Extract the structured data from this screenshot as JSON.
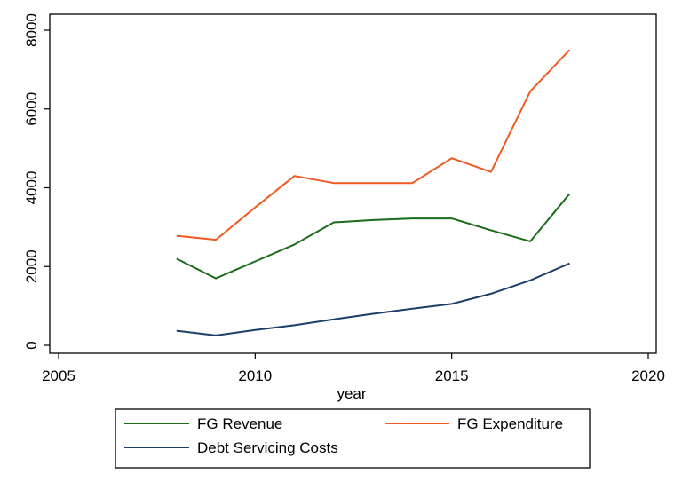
{
  "chart_data": {
    "type": "line",
    "xlabel": "year",
    "ylabel": "",
    "xlim": [
      2005,
      2020
    ],
    "ylim": [
      0,
      8000
    ],
    "x_ticks": [
      2005,
      2010,
      2015,
      2020
    ],
    "y_ticks": [
      0,
      2000,
      4000,
      6000,
      8000
    ],
    "grid": false,
    "legend_position": "bottom",
    "x": [
      2008,
      2009,
      2010,
      2011,
      2012,
      2013,
      2014,
      2015,
      2016,
      2017,
      2018
    ],
    "series": [
      {
        "name": "FG Revenue",
        "color": "#1a6b1a",
        "values": [
          2200,
          1700,
          2130,
          2560,
          3120,
          3180,
          3220,
          3220,
          2920,
          2640,
          3850
        ]
      },
      {
        "name": "FG Expenditure",
        "color": "#f05a22",
        "values": [
          2780,
          2680,
          3500,
          4300,
          4120,
          4120,
          4120,
          4750,
          4400,
          6450,
          7500
        ]
      },
      {
        "name": "Debt Servicing Costs",
        "color": "#1c3f66",
        "values": [
          370,
          250,
          390,
          510,
          660,
          800,
          930,
          1050,
          1310,
          1650,
          2080
        ]
      }
    ]
  }
}
